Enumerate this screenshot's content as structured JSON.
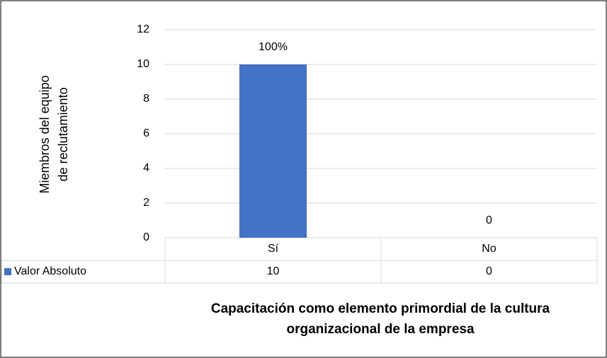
{
  "chart_data": {
    "type": "bar",
    "y_label": [
      "Miembros del equipo",
      "de reclutamiento"
    ],
    "x_label": [
      "Capacitación como elemento primordial de la cultura",
      "organizacional de la empresa"
    ],
    "categories": [
      "Sí",
      "No"
    ],
    "series": [
      {
        "name": "Valor Absoluto",
        "color": "#4472c4",
        "values": [
          10,
          0
        ]
      }
    ],
    "annotations": [
      {
        "category": 0,
        "text": "100%"
      }
    ],
    "ylim": [
      0,
      12
    ],
    "yticks": [
      0,
      2,
      4,
      6,
      8,
      10,
      12
    ],
    "grid": true,
    "data_table": true
  }
}
